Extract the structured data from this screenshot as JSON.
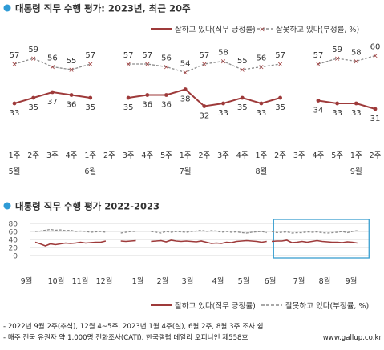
{
  "colors": {
    "approve": "#9e3a3a",
    "disapprove": "#8c8c8c",
    "bullet": "#2e9bd6",
    "highlight": "#3a9fd0",
    "grid": "#cccccc",
    "text": "#333333"
  },
  "chart_data": [
    {
      "type": "line",
      "title": "대통령 직무 수행 평가: 2023년, 최근 20주",
      "legend": [
        "잘하고 있다(직무 긍정률)",
        "잘못하고 있다(부정률, %)"
      ],
      "ticks": [
        "1주",
        "2주",
        "3주",
        "4주",
        "1주",
        "2주",
        "3주",
        "4주",
        "5주",
        "1주",
        "2주",
        "3주",
        "4주",
        "1주",
        "2주",
        "3주",
        "4주",
        "5주",
        "1주",
        "2주"
      ],
      "month_labels": [
        {
          "label": "5월",
          "at": 0
        },
        {
          "label": "6월",
          "at": 4
        },
        {
          "label": "7월",
          "at": 9
        },
        {
          "label": "8월",
          "at": 13
        },
        {
          "label": "9월",
          "at": 18
        }
      ],
      "series": [
        {
          "name": "잘못하고 있다(부정률, %)",
          "segments": [
            {
              "start": 0,
              "values": [
                57,
                59,
                56,
                55,
                57
              ]
            },
            {
              "start": 6,
              "values": [
                57,
                57,
                56,
                54,
                57,
                58,
                55,
                56,
                57
              ]
            },
            {
              "start": 16,
              "values": [
                57,
                59,
                58,
                60
              ]
            }
          ]
        },
        {
          "name": "잘하고 있다(직무 긍정률)",
          "segments": [
            {
              "start": 0,
              "values": [
                33,
                35,
                37,
                36,
                35
              ]
            },
            {
              "start": 6,
              "values": [
                35,
                36,
                36,
                38,
                32,
                33,
                35,
                33,
                35
              ]
            },
            {
              "start": 16,
              "values": [
                34,
                33,
                33,
                31
              ]
            }
          ]
        }
      ],
      "ylim": [
        0,
        100
      ]
    },
    {
      "type": "line",
      "title": "대통령 직무 수행 평가 2022-2023",
      "legend": [
        "잘하고 있다(직무 긍정률)",
        "잘못하고 있다(부정률, %)"
      ],
      "yticks": [
        "80",
        "60",
        "40",
        "20",
        "0"
      ],
      "ylim": [
        0,
        80
      ],
      "months": [
        "9월",
        "10월",
        "11월",
        "12월",
        "1월",
        "2월",
        "3월",
        "4월",
        "5월",
        "6월",
        "7월",
        "8월",
        "9월"
      ],
      "series": [
        {
          "name": "잘못하고 있다(부정률, %)",
          "segments": [
            {
              "start": 0,
              "values": [
                60,
                61,
                63,
                65,
                63,
                64,
                62,
                63,
                60,
                61,
                60,
                58,
                59,
                60,
                58
              ]
            },
            {
              "start": 17,
              "values": [
                56,
                58,
                60,
                60
              ]
            },
            {
              "start": 23,
              "values": [
                60,
                58,
                56,
                60,
                58,
                60,
                59,
                58,
                60,
                61,
                63,
                60,
                62,
                61,
                58,
                60,
                58,
                59,
                57,
                56,
                58,
                59,
                60,
                57
              ]
            },
            {
              "start": 47,
              "values": [
                60,
                57,
                58,
                59,
                56,
                57,
                57,
                59,
                58,
                59,
                57,
                56,
                57,
                58,
                60,
                57,
                60,
                62
              ]
            }
          ]
        },
        {
          "name": "잘하고 있다(직무 긍정률)",
          "segments": [
            {
              "start": 0,
              "values": [
                33,
                29,
                24,
                29,
                27,
                29,
                31,
                30,
                31,
                33,
                31,
                32,
                33,
                33,
                36
              ]
            },
            {
              "start": 17,
              "values": [
                36,
                35,
                36,
                37
              ]
            },
            {
              "start": 23,
              "values": [
                35,
                36,
                37,
                34,
                38,
                36,
                35,
                36,
                35,
                34,
                36,
                33,
                30,
                31,
                30,
                33,
                32,
                35,
                36,
                37,
                36,
                35,
                33,
                35
              ]
            },
            {
              "start": 47,
              "values": [
                35,
                36,
                36,
                38,
                32,
                33,
                35,
                33,
                35,
                37,
                35,
                34,
                33,
                33,
                32,
                34,
                33,
                31
              ]
            }
          ]
        }
      ],
      "highlight": {
        "from": 48,
        "to": 66
      }
    }
  ],
  "footer": {
    "line1": "- 2022년 9월 2주(추석), 12월 4~5주, 2023년 1월 4주(설), 6월 2주, 8월 3주 조사 쉼",
    "line2": "- 매주 전국 유권자 약 1,000명 전화조사(CATI). 한국갤럽 데일리 오피니언 제558호",
    "url": "www.gallup.co.kr"
  }
}
